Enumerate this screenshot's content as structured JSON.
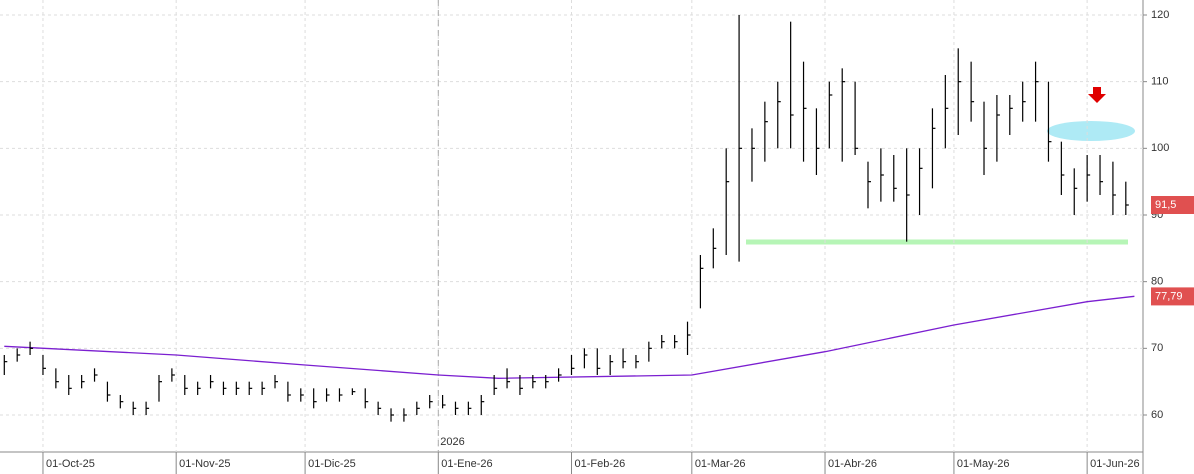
{
  "chart_data": {
    "type": "ohlc",
    "x": [
      "2025-09-22",
      "2025-09-25",
      "2025-09-28",
      "2025-10-01",
      "2025-10-04",
      "2025-10-07",
      "2025-10-10",
      "2025-10-13",
      "2025-10-16",
      "2025-10-19",
      "2025-10-22",
      "2025-10-25",
      "2025-10-28",
      "2025-10-31",
      "2025-11-03",
      "2025-11-06",
      "2025-11-09",
      "2025-11-12",
      "2025-11-15",
      "2025-11-18",
      "2025-11-21",
      "2025-11-24",
      "2025-11-27",
      "2025-11-30",
      "2025-12-03",
      "2025-12-06",
      "2025-12-09",
      "2025-12-12",
      "2025-12-15",
      "2025-12-18",
      "2025-12-21",
      "2025-12-24",
      "2025-12-27",
      "2025-12-30",
      "2026-01-02",
      "2026-01-05",
      "2026-01-08",
      "2026-01-11",
      "2026-01-14",
      "2026-01-17",
      "2026-01-20",
      "2026-01-23",
      "2026-01-26",
      "2026-01-29",
      "2026-02-01",
      "2026-02-04",
      "2026-02-07",
      "2026-02-10",
      "2026-02-13",
      "2026-02-16",
      "2026-02-19",
      "2026-02-22",
      "2026-02-25",
      "2026-02-28",
      "2026-03-03",
      "2026-03-06",
      "2026-03-09",
      "2026-03-12",
      "2026-03-15",
      "2026-03-18",
      "2026-03-21",
      "2026-03-24",
      "2026-03-27",
      "2026-03-30",
      "2026-04-02",
      "2026-04-05",
      "2026-04-08",
      "2026-04-11",
      "2026-04-14",
      "2026-04-17",
      "2026-04-20",
      "2026-04-23",
      "2026-04-26",
      "2026-04-29",
      "2026-05-02",
      "2026-05-05",
      "2026-05-08",
      "2026-05-11",
      "2026-05-14",
      "2026-05-17",
      "2026-05-20",
      "2026-05-23",
      "2026-05-26",
      "2026-05-29",
      "2026-06-01",
      "2026-06-04",
      "2026-06-07",
      "2026-06-10"
    ],
    "high": [
      69,
      70,
      71,
      69,
      67,
      66,
      66,
      67,
      65,
      63,
      62,
      62,
      66,
      67,
      66,
      65,
      66,
      65,
      65,
      65,
      65,
      66,
      65,
      64,
      64,
      64,
      64,
      64,
      64,
      62,
      61,
      61,
      62,
      63,
      63,
      62,
      62,
      63,
      66,
      67,
      66,
      66,
      66,
      67,
      69,
      70,
      70,
      69,
      70,
      69,
      71,
      72,
      72,
      74,
      84,
      88,
      100,
      120,
      103,
      107,
      110,
      119,
      113,
      106,
      110,
      112,
      110,
      98,
      100,
      99,
      100,
      100,
      106,
      111,
      115,
      113,
      107,
      108,
      108,
      110,
      113,
      110,
      101,
      97,
      99,
      99,
      98,
      95
    ],
    "low": [
      66,
      68,
      69,
      66,
      64,
      63,
      64,
      65,
      62,
      61,
      60,
      60,
      62,
      65,
      63,
      63,
      64,
      63,
      63,
      63,
      63,
      64,
      62,
      62,
      61,
      62,
      62,
      63,
      61,
      60,
      59,
      59,
      60,
      61,
      61,
      60,
      60,
      60,
      63,
      64,
      63,
      64,
      64,
      65,
      66,
      67,
      66,
      66,
      67,
      67,
      68,
      70,
      70,
      69,
      76,
      82,
      84,
      83,
      95,
      98,
      100,
      100,
      98,
      96,
      100,
      98,
      99,
      91,
      92,
      92,
      86,
      90,
      94,
      100,
      102,
      104,
      96,
      98,
      102,
      104,
      104,
      98,
      93,
      90,
      92,
      93,
      90,
      90
    ],
    "close": [
      68,
      69,
      70,
      67,
      65,
      64,
      65,
      66,
      63,
      62,
      61,
      61,
      65,
      66,
      64,
      64,
      65,
      64,
      64,
      64,
      64,
      65,
      63,
      63,
      62,
      63,
      63,
      63.5,
      62,
      61,
      60,
      60,
      61,
      62,
      61.5,
      61,
      61,
      62,
      64,
      65,
      64,
      65,
      65,
      66,
      67,
      69,
      67,
      68,
      68,
      68,
      70,
      71,
      71,
      72,
      82,
      85,
      95,
      100,
      100,
      104,
      107,
      105,
      106,
      100,
      108,
      110,
      100,
      95,
      96,
      94,
      93,
      97,
      103,
      106,
      110,
      107,
      100,
      105,
      106,
      107,
      110,
      101,
      96,
      94,
      96,
      95,
      93,
      91.5
    ],
    "color": "#000000",
    "ma": {
      "x": [
        "2025-09-22",
        "2025-11-01",
        "2025-12-01",
        "2026-01-01",
        "2026-01-15",
        "2026-03-01",
        "2026-04-01",
        "2026-05-01",
        "2026-06-01",
        "2026-06-12"
      ],
      "values": [
        70.3,
        69,
        67.5,
        66,
        65.5,
        66,
        69.5,
        73.5,
        77,
        77.8
      ],
      "color": "#7b1fd0"
    },
    "markers": [
      {
        "value": 91.5,
        "label": "91,5"
      },
      {
        "value": 77.79,
        "label": "77,79"
      }
    ],
    "xlim": [
      "2025-09-21",
      "2026-06-14"
    ],
    "xticks": [
      {
        "value": "2025-10-01",
        "label": "01-Oct-25"
      },
      {
        "value": "2025-11-01",
        "label": "01-Nov-25"
      },
      {
        "value": "2025-12-01",
        "label": "01-Dic-25"
      },
      {
        "value": "2026-01-01",
        "label": "01-Ene-26"
      },
      {
        "value": "2026-02-01",
        "label": "01-Feb-26"
      },
      {
        "value": "2026-03-01",
        "label": "01-Mar-26"
      },
      {
        "value": "2026-04-01",
        "label": "01-Abr-26"
      },
      {
        "value": "2026-05-01",
        "label": "01-May-26"
      },
      {
        "value": "2026-06-01",
        "label": "01-Jun-26"
      }
    ],
    "year_label": {
      "value": "2026-01-01",
      "label": "2026"
    },
    "ylim": [
      54.45,
      122.25
    ],
    "yticks": [
      60,
      70,
      80,
      90,
      100,
      110,
      120
    ],
    "grid": true
  }
}
